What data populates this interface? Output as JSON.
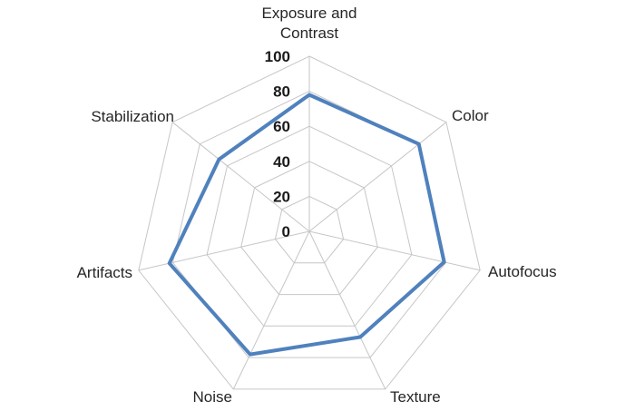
{
  "chart_data": {
    "type": "radar",
    "title": "",
    "categories": [
      "Exposure and Contrast",
      "Color",
      "Autofocus",
      "Texture",
      "Noise",
      "Artifacts",
      "Stabilization"
    ],
    "values": [
      78,
      80,
      79,
      67,
      78,
      82,
      66
    ],
    "ticks": [
      0,
      20,
      40,
      60,
      80,
      100
    ],
    "axis_range": [
      0,
      100
    ],
    "grid": true,
    "legend": false,
    "colors": {
      "series_line": "#4F81BD",
      "grid_line": "#C6C6C6",
      "tick_text": "#1A1A1A",
      "category_text": "#262626",
      "background": "#FFFFFF"
    }
  }
}
